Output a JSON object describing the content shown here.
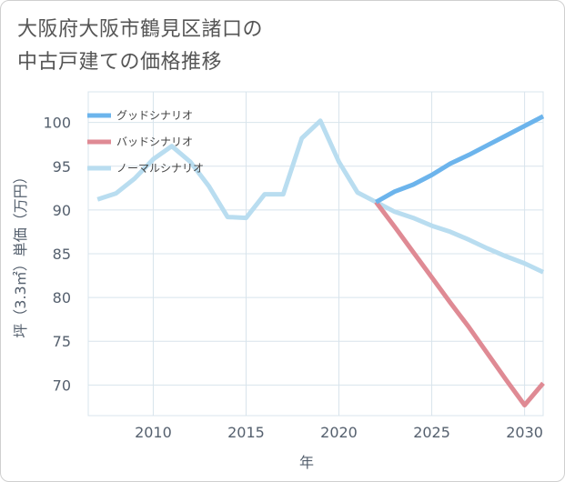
{
  "title_line1": "大阪府大阪市鶴見区諸口の",
  "title_line2": "中古戸建ての価格推移",
  "chart_data": {
    "type": "line",
    "xlabel": "年",
    "ylabel": "坪（3.3㎡）単価（万円）",
    "xlim": [
      2006.5,
      2031
    ],
    "ylim": [
      66.5,
      103.5
    ],
    "xticks": [
      2010,
      2015,
      2020,
      2025,
      2030
    ],
    "yticks": [
      70,
      75,
      80,
      85,
      90,
      95,
      100
    ],
    "grid": true,
    "legend_position": "top-left",
    "series": [
      {
        "name": "グッドシナリオ",
        "color": "#6cb4ec",
        "x": [
          2022,
          2023,
          2024,
          2025,
          2026,
          2027,
          2028,
          2029,
          2030,
          2031
        ],
        "y": [
          90.9,
          92.1,
          92.9,
          94.0,
          95.3,
          96.3,
          97.4,
          98.5,
          99.6,
          100.7
        ]
      },
      {
        "name": "バッドシナリオ",
        "color": "#df8a94",
        "x": [
          2022,
          2023,
          2024,
          2025,
          2026,
          2027,
          2028,
          2029,
          2030,
          2031
        ],
        "y": [
          90.9,
          88.1,
          85.2,
          82.3,
          79.4,
          76.6,
          73.6,
          70.6,
          67.7,
          70.2
        ]
      },
      {
        "name": "ノーマルシナリオ",
        "color": "#b9ddf0",
        "x": [
          2007,
          2008,
          2009,
          2010,
          2011,
          2012,
          2013,
          2014,
          2015,
          2016,
          2017,
          2018,
          2019,
          2020,
          2021,
          2022,
          2023,
          2024,
          2025,
          2026,
          2027,
          2028,
          2029,
          2030,
          2031
        ],
        "y": [
          91.2,
          91.9,
          93.6,
          95.8,
          97.3,
          95.5,
          92.7,
          89.2,
          89.1,
          91.8,
          91.8,
          98.2,
          100.2,
          95.5,
          92.0,
          90.9,
          89.8,
          89.1,
          88.2,
          87.5,
          86.6,
          85.6,
          84.7,
          83.9,
          82.9
        ]
      }
    ]
  }
}
